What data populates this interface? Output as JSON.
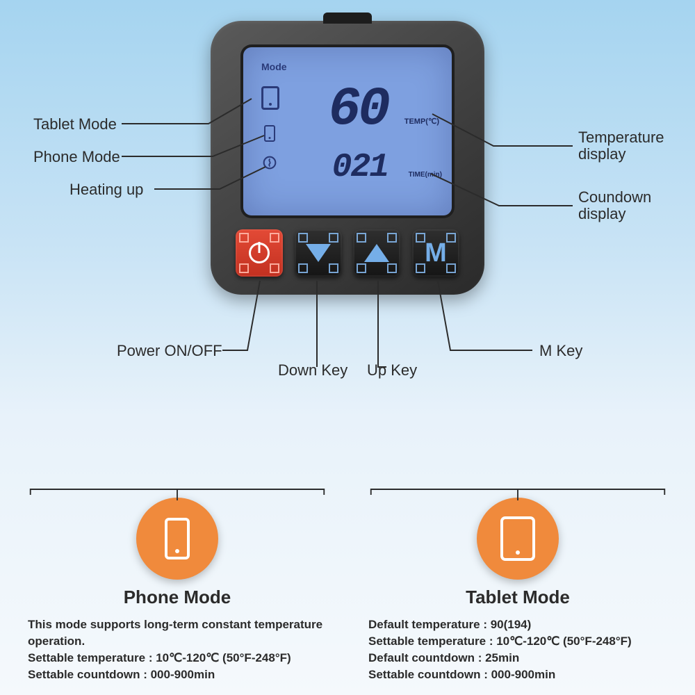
{
  "background_gradient": [
    "#a5d4f0",
    "#c8e3f5",
    "#e8f2fa",
    "#f5f9fc"
  ],
  "device": {
    "body_color_a": "#5a5a5a",
    "body_color_b": "#2a2a2a",
    "lcd_bg": "#7ea0e0",
    "lcd_text_color": "#1e2c60",
    "mode_label": "Mode",
    "temp_value": "60",
    "temp_unit": "TEMP(℃)",
    "time_value": "021",
    "time_unit": "TIME(min)",
    "buttons": {
      "power": {
        "name": "power-button",
        "color": "#e34a36",
        "glyph": "power"
      },
      "down": {
        "name": "down-button",
        "color": "#222222",
        "glyph": "triangle-down",
        "accent": "#75aee8"
      },
      "up": {
        "name": "up-button",
        "color": "#222222",
        "glyph": "triangle-up",
        "accent": "#75aee8"
      },
      "m": {
        "name": "m-button",
        "color": "#222222",
        "glyph_text": "M",
        "accent": "#75aee8"
      }
    }
  },
  "callouts": {
    "tablet_mode": "Tablet Mode",
    "phone_mode": "Phone Mode",
    "heating_up": "Heating up",
    "temp_display": "Temperature\ndisplay",
    "countdown": "Coundown\ndisplay",
    "power": "Power ON/OFF",
    "down": "Down Key",
    "up": "Up Key",
    "m": "M Key",
    "line_color": "#2b2b2b",
    "line_width": 2
  },
  "modes": {
    "phone": {
      "icon": "phone",
      "icon_bg": "#f08a3c",
      "title": "Phone Mode",
      "lines": [
        "This mode supports long-term constant temperature operation.",
        "Settable temperature : 10℃-120℃ (50°F-248°F)",
        "Settable countdown : 000-900min"
      ]
    },
    "tablet": {
      "icon": "tablet",
      "icon_bg": "#f08a3c",
      "title": "Tablet Mode",
      "lines": [
        "Default temperature : 90(194)",
        "Settable temperature : 10℃-120℃ (50°F-248°F)",
        "Default countdown : 25min",
        "Settable countdown : 000-900min"
      ]
    }
  },
  "typography": {
    "callout_fontsize": 22,
    "mode_title_fontsize": 26,
    "mode_body_fontsize": 17,
    "lcd_temp_fontsize": 78,
    "lcd_time_fontsize": 48
  }
}
